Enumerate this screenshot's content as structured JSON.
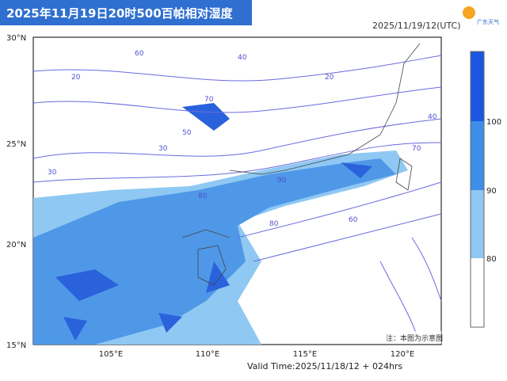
{
  "header": {
    "title": "2025年11月19日20时500百帕相对湿度",
    "time": "2025/11/19/12(UTC)",
    "logo": "广东天气"
  },
  "map": {
    "lat_labels": [
      "30°N",
      "25°N",
      "20°N",
      "15°N"
    ],
    "lon_labels": [
      "105°E",
      "110°E",
      "115°E",
      "120°E"
    ],
    "contour_labels": [
      "60",
      "40",
      "20",
      "70",
      "50",
      "30",
      "80",
      "90",
      "40",
      "60",
      "30",
      "20",
      "70",
      "80"
    ],
    "note": "注：本图为示意图"
  },
  "colorbar": {
    "labels": [
      "100",
      "90",
      "80"
    ]
  },
  "footer": {
    "valid_time": "Valid Time:2025/11/18/12 + 024hrs"
  }
}
